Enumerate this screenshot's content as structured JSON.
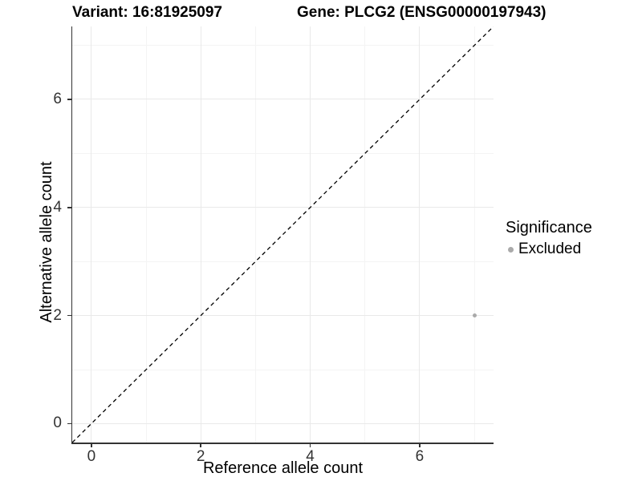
{
  "titles": {
    "variant": "Variant: 16:81925097",
    "gene": "Gene: PLCG2 (ENSG00000197943)"
  },
  "chart_data": {
    "type": "scatter",
    "title": "Variant: 16:81925097  Gene: PLCG2 (ENSG00000197943)",
    "xlabel": "Reference allele count",
    "ylabel": "Alternative allele count",
    "xlim": [
      -0.35,
      7.35
    ],
    "ylim": [
      -0.35,
      7.35
    ],
    "x_major_ticks": [
      0,
      2,
      4,
      6
    ],
    "y_major_ticks": [
      0,
      2,
      4,
      6
    ],
    "x_minor_gridlines": [
      1,
      3,
      5,
      7
    ],
    "y_minor_gridlines": [
      1,
      3,
      5,
      7
    ],
    "grid": true,
    "reference_line": {
      "equation": "y = x",
      "style": "dashed",
      "color": "#000000"
    },
    "series": [
      {
        "name": "Excluded",
        "color": "#aaaaaa",
        "points": [
          [
            7,
            2
          ]
        ]
      }
    ],
    "legend": {
      "title": "Significance",
      "position": "right",
      "entries": [
        {
          "label": "Excluded",
          "color": "#aaaaaa"
        }
      ]
    }
  },
  "colors": {
    "background": "#ffffff",
    "grid_major": "#e9e9e9",
    "grid_minor": "#f4f4f4",
    "axis_line": "#333333",
    "tick_label": "#333333",
    "title_text": "#000000"
  }
}
